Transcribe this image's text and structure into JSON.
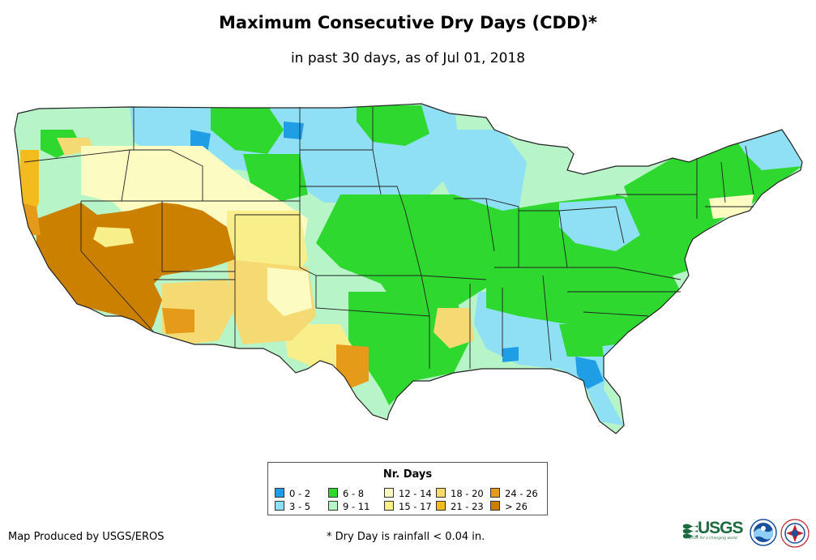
{
  "title": "Maximum Consecutive Dry Days (CDD)*",
  "subtitle": "in past 30 days, as of Jul 01, 2018",
  "legend": {
    "title": "Nr. Days",
    "items": [
      {
        "label": "0 - 2",
        "color": "#1f9ee6"
      },
      {
        "label": "3 - 5",
        "color": "#8fe0f5"
      },
      {
        "label": "6 - 8",
        "color": "#2ed82e"
      },
      {
        "label": "9 - 11",
        "color": "#b7f4c7"
      },
      {
        "label": "12 - 14",
        "color": "#fbfbc2"
      },
      {
        "label": "15 - 17",
        "color": "#f8ee8a"
      },
      {
        "label": "18 - 20",
        "color": "#f5d972"
      },
      {
        "label": "21 - 23",
        "color": "#f4bb1f"
      },
      {
        "label": "24 - 26",
        "color": "#e69a1a"
      },
      {
        "label": "> 26",
        "color": "#cc8000"
      }
    ]
  },
  "credit": "Map Produced by USGS/EROS",
  "footnote": "* Dry Day is rainfall < 0.04 in.",
  "logos": {
    "usgs": "USGS",
    "usgs_tagline": "science for a changing world",
    "noaa": "noaa-seal",
    "nws": "nws-seal"
  }
}
